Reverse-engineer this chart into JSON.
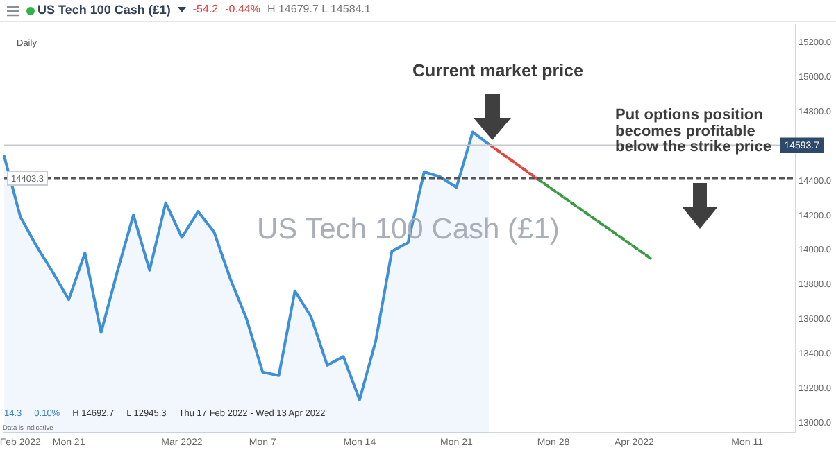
{
  "chart_data": {
    "type": "area",
    "title": "US Tech 100 Cash (£1)",
    "categories": [
      null,
      "Feb 2022",
      null,
      null,
      "Mon 21",
      null,
      null,
      null,
      null,
      null,
      null,
      "Mar 2022",
      null,
      null,
      null,
      null,
      "Mon 7",
      null,
      null,
      null,
      null,
      null,
      "Mon 14",
      null,
      null,
      null,
      null,
      null,
      "Mon 21",
      null,
      null,
      null,
      null,
      null,
      "Mon 28",
      null,
      null,
      null,
      null,
      "Apr 2022",
      null,
      null,
      null,
      null,
      null,
      null,
      "Mon 11",
      null,
      null,
      null
    ],
    "series": [
      {
        "color": "#3d8fd8",
        "values": [
          14530,
          14180,
          14010,
          13860,
          13700,
          13970,
          13510,
          13860,
          14190,
          13870,
          14260,
          14060,
          14210,
          14090,
          13820,
          13590,
          13280,
          13260,
          13750,
          13600,
          13320,
          13370,
          13120,
          13460,
          13980,
          14030,
          14440,
          14410,
          14350,
          14670,
          14600,
          null,
          null,
          null,
          null,
          null,
          null,
          null,
          null,
          null,
          null,
          null,
          null,
          null,
          null,
          null,
          null,
          null,
          null,
          null
        ]
      },
      {
        "type": "line",
        "color": "#e0473e",
        "line_style": "dashed",
        "values": [
          null,
          null,
          null,
          null,
          null,
          null,
          null,
          null,
          null,
          null,
          null,
          null,
          null,
          null,
          null,
          null,
          null,
          null,
          null,
          null,
          null,
          null,
          null,
          null,
          null,
          null,
          null,
          null,
          null,
          null,
          14600,
          null,
          null,
          14400,
          null,
          null,
          null,
          null,
          null,
          null,
          null,
          null,
          null,
          null,
          null,
          null,
          null,
          null,
          null,
          null
        ]
      },
      {
        "type": "line",
        "color": "#3a9a45",
        "line_style": "dashed",
        "values": [
          null,
          null,
          null,
          null,
          null,
          null,
          null,
          null,
          null,
          null,
          null,
          null,
          null,
          null,
          null,
          null,
          null,
          null,
          null,
          null,
          null,
          null,
          null,
          null,
          null,
          null,
          null,
          null,
          null,
          null,
          null,
          null,
          null,
          14400,
          null,
          null,
          null,
          null,
          null,
          null,
          13940,
          null,
          null,
          null,
          null,
          null,
          null,
          null,
          null,
          null
        ]
      }
    ],
    "ylim": [
      12930,
      15290
    ],
    "yticks": [
      {
        "value": 13000,
        "label": "13000.0"
      },
      {
        "value": 13200,
        "label": "13200.0"
      },
      {
        "value": 13400,
        "label": "13400.0"
      },
      {
        "value": 13600,
        "label": "13600.0"
      },
      {
        "value": 13800,
        "label": "13800.0"
      },
      {
        "value": 14000,
        "label": "14000.0"
      },
      {
        "value": 14200,
        "label": "14200.0"
      },
      {
        "value": 14400,
        "label": "14400.0"
      },
      {
        "value": 14600,
        "label": null
      },
      {
        "value": 14800,
        "label": "14800.0"
      },
      {
        "value": 15000,
        "label": "15000.0"
      },
      {
        "value": 15200,
        "label": "15200.0"
      }
    ],
    "ref_lines": [
      {
        "axis": "y",
        "value": 14593.7,
        "label": "14593.7",
        "color": "#c4c8cd",
        "line_style": "solid"
      },
      {
        "axis": "y",
        "value": 14403.3,
        "label": "14403.3",
        "color": "#555555",
        "line_style": "dashed"
      }
    ],
    "annotations": [
      "-54.2",
      "-0.44%",
      "H 14679.7 L 14584.1",
      "Daily",
      "Current market price",
      "Put options position becomes profitable below the strike price",
      "US Tech 100 Cash (£1)",
      "14.3",
      "0.10%",
      "H 14692.7",
      "L 12945.3",
      "Thu 17 Feb 2022 - Wed 13 Apr 2022",
      "Data is indicative"
    ],
    "marker": "none",
    "line_style": "solid",
    "grid": false,
    "legend": false
  }
}
